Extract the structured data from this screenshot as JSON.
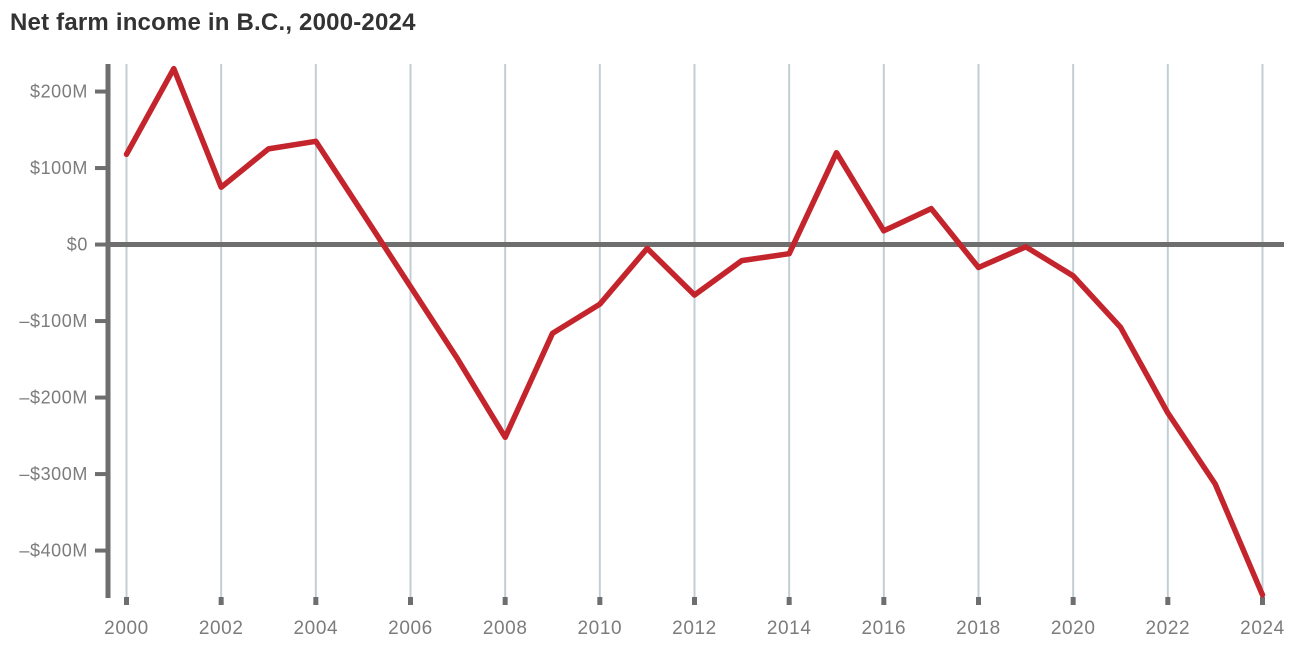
{
  "page": {
    "title": "Net farm income in B.C., 2000-2024"
  },
  "colors": {
    "background": "#ffffff",
    "line": "#c4242c",
    "axis": "#6e6e6e",
    "grid": "#c3ced4",
    "tick_label": "#7c7c7c",
    "title": "#333333"
  },
  "chart_data": {
    "type": "line",
    "title": "Net farm income in B.C., 2000-2024",
    "xlabel": "",
    "ylabel": "",
    "x": [
      2000,
      2001,
      2002,
      2003,
      2004,
      2005,
      2006,
      2007,
      2008,
      2009,
      2010,
      2011,
      2012,
      2013,
      2014,
      2015,
      2016,
      2017,
      2018,
      2019,
      2020,
      2021,
      2022,
      2023,
      2024
    ],
    "series": [
      {
        "name": "Net farm income",
        "values": [
          118,
          230,
          75,
          125,
          135,
          40,
          -55,
          -150,
          -252,
          -116,
          -78,
          -5,
          -66,
          -21,
          -12,
          120,
          18,
          47,
          -30,
          -3,
          -41,
          -108,
          -220,
          -313,
          -458
        ]
      }
    ],
    "x_tick_labels": [
      "2000",
      "2002",
      "2004",
      "2006",
      "2008",
      "2010",
      "2012",
      "2014",
      "2016",
      "2018",
      "2020",
      "2022",
      "2024"
    ],
    "x_tick_values": [
      2000,
      2002,
      2004,
      2006,
      2008,
      2010,
      2012,
      2014,
      2016,
      2018,
      2020,
      2022,
      2024
    ],
    "y_tick_labels": [
      "$200M",
      "$100M",
      "$0",
      "–$100M",
      "–$200M",
      "–$300M",
      "–$400M"
    ],
    "y_tick_values": [
      200,
      100,
      0,
      -100,
      -200,
      -300,
      -400
    ],
    "xlim": [
      2000,
      2024
    ],
    "ylim": [
      -462,
      236
    ],
    "grid": "vertical-only",
    "legend": "none",
    "zero_baseline": true,
    "unit": "millions of dollars"
  }
}
